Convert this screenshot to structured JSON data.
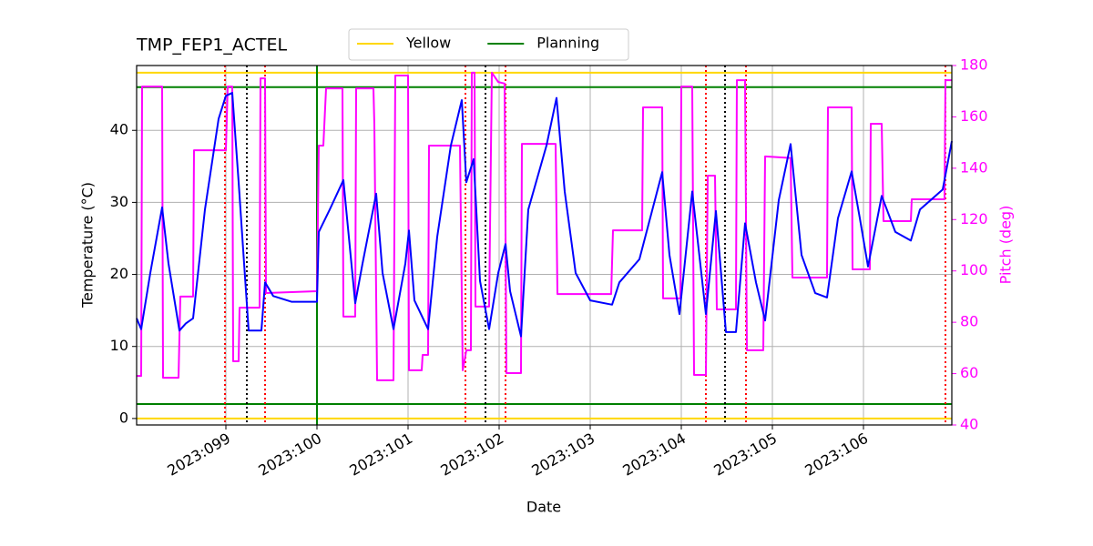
{
  "chart_data": {
    "type": "line",
    "title": "TMP_FEP1_ACTEL",
    "x_label": "Date",
    "y_label": "Temperature (°C)",
    "y2_label": "Pitch (deg)",
    "xlim": [
      98.02,
      106.97
    ],
    "xticks": [
      {
        "value": 99,
        "label": "2023:099"
      },
      {
        "value": 100,
        "label": "2023:100"
      },
      {
        "value": 101,
        "label": "2023:101"
      },
      {
        "value": 102,
        "label": "2023:102"
      },
      {
        "value": 103,
        "label": "2023:103"
      },
      {
        "value": 104,
        "label": "2023:104"
      },
      {
        "value": 105,
        "label": "2023:105"
      },
      {
        "value": 106,
        "label": "2023:106"
      }
    ],
    "ylim": [
      -0.9,
      49
    ],
    "yticks": [
      0,
      10,
      20,
      30,
      40
    ],
    "y2lim": [
      40,
      180
    ],
    "y2ticks": [
      40,
      60,
      80,
      100,
      120,
      140,
      160,
      180
    ],
    "grid": true,
    "legend": "top",
    "limits": [
      {
        "name": "Yellow",
        "color": "#ffd700",
        "values": [
          0,
          48
        ]
      },
      {
        "name": "Planning",
        "color": "#008000",
        "values": [
          2,
          46
        ]
      }
    ],
    "vlines": [
      {
        "color": "#008000",
        "style": "solid",
        "x": [
          100.0
        ]
      },
      {
        "color": "#ff0000",
        "style": "dotted",
        "x": [
          98.99,
          99.43,
          101.63,
          102.07,
          104.27,
          104.71,
          106.9
        ]
      },
      {
        "color": "#000000",
        "style": "dotted",
        "x": [
          99.23,
          101.85,
          104.48
        ]
      }
    ],
    "series": [
      {
        "color": "#0000ff",
        "axis": "y",
        "x": [
          98.02,
          98.07,
          98.17,
          98.3,
          98.37,
          98.49,
          98.56,
          98.64,
          98.77,
          98.92,
          99.0,
          99.07,
          99.14,
          99.2,
          99.25,
          99.39,
          99.43,
          99.52,
          99.72,
          100.0,
          100.02,
          100.14,
          100.29,
          100.42,
          100.5,
          100.65,
          100.72,
          100.84,
          100.97,
          101.01,
          101.07,
          101.22,
          101.32,
          101.47,
          101.59,
          101.64,
          101.72,
          101.79,
          101.89,
          101.99,
          102.07,
          102.12,
          102.24,
          102.32,
          102.52,
          102.63,
          102.72,
          102.84,
          103.0,
          103.24,
          103.32,
          103.54,
          103.79,
          103.87,
          103.98,
          104.12,
          104.27,
          104.38,
          104.49,
          104.6,
          104.7,
          104.82,
          104.92,
          105.07,
          105.2,
          105.32,
          105.47,
          105.6,
          105.72,
          105.87,
          105.96,
          106.05,
          106.2,
          106.35,
          106.52,
          106.62,
          106.87,
          106.97
        ],
        "values": [
          13.9,
          12.4,
          20.2,
          29.3,
          21.5,
          12.2,
          13.2,
          13.9,
          29,
          41.6,
          44.8,
          45.2,
          32.8,
          21.5,
          12.2,
          12.2,
          18.9,
          17,
          16.2,
          16.2,
          25.9,
          29,
          33.1,
          16,
          21.5,
          31.2,
          20.2,
          12.4,
          21.5,
          26.1,
          16.4,
          12.4,
          25.2,
          37.9,
          44.2,
          32.8,
          36,
          19.1,
          12.4,
          20.2,
          24.2,
          17.7,
          11.4,
          29,
          37.9,
          44.5,
          31.5,
          20.2,
          16.4,
          15.8,
          18.9,
          22.1,
          34.2,
          22.7,
          14.5,
          31.5,
          14.5,
          28.8,
          12,
          12,
          27.1,
          18.9,
          13.6,
          30.3,
          38.1,
          22.7,
          17.4,
          16.8,
          27.8,
          34.3,
          27.8,
          21.1,
          30.9,
          25.9,
          24.7,
          29,
          31.8,
          38.5
        ]
      },
      {
        "color": "#ff00ff",
        "axis": "y2",
        "x": [
          98.02,
          98.07,
          98.08,
          98.3,
          98.31,
          98.48,
          98.5,
          98.64,
          98.65,
          99.0,
          99.02,
          99.07,
          99.08,
          99.14,
          99.15,
          99.37,
          99.38,
          99.43,
          99.44,
          100.0,
          100.02,
          100.07,
          100.1,
          100.28,
          100.29,
          100.42,
          100.43,
          100.62,
          100.63,
          100.66,
          100.84,
          100.86,
          101.0,
          101.01,
          101.15,
          101.16,
          101.22,
          101.23,
          101.57,
          101.6,
          101.64,
          101.69,
          101.7,
          101.73,
          101.74,
          101.89,
          101.92,
          101.99,
          102.06,
          102.08,
          102.24,
          102.25,
          102.62,
          102.64,
          103.23,
          103.25,
          103.57,
          103.58,
          103.79,
          103.8,
          103.99,
          104.0,
          104.12,
          104.14,
          104.27,
          104.29,
          104.37,
          104.39,
          104.6,
          104.61,
          104.7,
          104.72,
          104.9,
          104.92,
          105.2,
          105.22,
          105.6,
          105.61,
          105.87,
          105.88,
          106.07,
          106.08,
          106.2,
          106.22,
          106.52,
          106.53,
          106.89,
          106.9,
          106.97
        ],
        "values": [
          59.1,
          59.1,
          171.8,
          171.8,
          58.4,
          58.4,
          90,
          90,
          147,
          147,
          171.8,
          171.8,
          64.8,
          64.8,
          85.7,
          85.7,
          175,
          175,
          91.4,
          92.1,
          148.8,
          148.8,
          171.1,
          171.1,
          82.2,
          82.2,
          171.1,
          171.1,
          157,
          57.4,
          57.4,
          176.1,
          176.1,
          61.3,
          61.3,
          67.3,
          67.3,
          148.8,
          148.8,
          61.3,
          69.1,
          69.1,
          177.2,
          177.2,
          86.1,
          86.1,
          177.2,
          173.6,
          173,
          60.2,
          60.2,
          149.5,
          149.5,
          91,
          91,
          115.8,
          115.8,
          163.7,
          163.7,
          89.3,
          89.3,
          171.8,
          171.8,
          59.5,
          59.5,
          137.1,
          137.1,
          85,
          85,
          174.3,
          174.3,
          69.1,
          69.1,
          144.6,
          144,
          97.4,
          97.4,
          163.7,
          163.7,
          100.6,
          100.6,
          157.3,
          157.3,
          119.4,
          119.4,
          127.9,
          127.9,
          174.3,
          174.3
        ]
      }
    ]
  }
}
